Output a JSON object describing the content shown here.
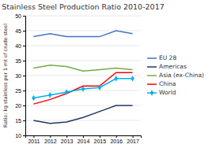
{
  "chart_data": {
    "type": "line",
    "title": "Stainless Steel Production Ratio 2010-2017",
    "y_label": "Ratio: kg stainless per 1 mt of crude steel",
    "x": [
      2011,
      2012,
      2013,
      2014,
      2015,
      2016,
      2017
    ],
    "series": [
      {
        "name": "EU 28",
        "color": "#4472C4",
        "values": [
          43,
          44,
          43,
          43,
          43,
          45,
          44
        ]
      },
      {
        "name": "Americas",
        "color": "#1F3864",
        "values": [
          15,
          14,
          14.5,
          16,
          18,
          20,
          20
        ]
      },
      {
        "name": "Asia (ex-China)",
        "color": "#70AD47",
        "values": [
          32.5,
          33.5,
          33,
          31.5,
          32,
          32.5,
          32
        ]
      },
      {
        "name": "China",
        "color": "#FF0000",
        "values": [
          20.5,
          22,
          24,
          26.5,
          26.5,
          31,
          31
        ]
      },
      {
        "name": "World",
        "color": "#00B0F0",
        "values": [
          22.5,
          23.5,
          24.5,
          25.5,
          26,
          29,
          29
        ],
        "marker": "diamond"
      }
    ],
    "xlim": [
      2010.5,
      2017.5
    ],
    "xticks": [
      2011,
      2012,
      2013,
      2014,
      2015,
      2016,
      2017
    ],
    "ylim": [
      10,
      50
    ],
    "yticks": [
      10,
      15,
      20,
      25,
      30,
      35,
      40,
      45,
      50
    ],
    "grid": true,
    "legend": "right"
  }
}
